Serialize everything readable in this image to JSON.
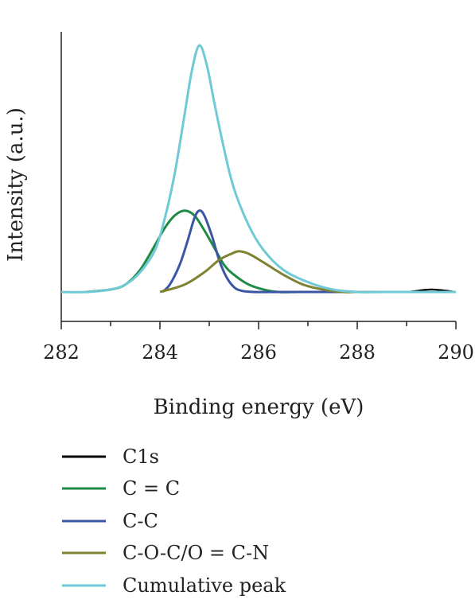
{
  "chart_data": {
    "type": "line",
    "title": "",
    "xlabel": "Binding energy (eV)",
    "ylabel": "Intensity (a.u.)",
    "xlim": [
      282,
      290
    ],
    "ylim": [
      0,
      1
    ],
    "x_ticks": [
      "282",
      "284",
      "286",
      "288",
      "290"
    ],
    "grid": false,
    "legend": {
      "placement": "bottom"
    },
    "series": [
      {
        "name": "C1s",
        "color": "#000000",
        "x": [
          282.0,
          282.5,
          283.0,
          283.3,
          283.6,
          283.9,
          284.1,
          284.3,
          284.5,
          284.65,
          284.8,
          284.95,
          285.1,
          285.3,
          285.5,
          285.8,
          286.1,
          286.5,
          287.0,
          287.5,
          288.0,
          288.5,
          289.0,
          289.5,
          290.0
        ],
        "y": [
          0.0,
          0.0,
          0.01,
          0.03,
          0.08,
          0.17,
          0.3,
          0.48,
          0.72,
          0.9,
          1.0,
          0.92,
          0.77,
          0.58,
          0.42,
          0.27,
          0.17,
          0.09,
          0.04,
          0.01,
          0.0,
          0.0,
          0.0,
          0.01,
          0.0
        ]
      },
      {
        "name": "C = C",
        "color": "#1f8a44",
        "x": [
          282.5,
          283.0,
          283.3,
          283.6,
          283.9,
          284.1,
          284.3,
          284.5,
          284.7,
          284.9,
          285.1,
          285.3,
          285.5,
          285.8,
          286.1,
          286.4,
          286.8,
          287.2
        ],
        "y": [
          0.0,
          0.01,
          0.03,
          0.09,
          0.19,
          0.26,
          0.31,
          0.33,
          0.31,
          0.25,
          0.18,
          0.11,
          0.07,
          0.03,
          0.01,
          0.0,
          0.0,
          0.0
        ]
      },
      {
        "name": "C-C",
        "color": "#3a56a5",
        "x": [
          284.05,
          284.2,
          284.4,
          284.55,
          284.7,
          284.8,
          284.9,
          285.05,
          285.2,
          285.35,
          285.5,
          285.65,
          285.9,
          286.5,
          290.0
        ],
        "y": [
          0.0,
          0.03,
          0.11,
          0.2,
          0.3,
          0.33,
          0.31,
          0.23,
          0.13,
          0.06,
          0.02,
          0.005,
          0.0,
          0.0,
          0.0
        ]
      },
      {
        "name": "C-O-C/O = C-N",
        "color": "#7f8230",
        "x": [
          284.0,
          284.5,
          284.9,
          285.2,
          285.45,
          285.6,
          285.8,
          286.1,
          286.5,
          286.9,
          287.3,
          287.7,
          288.0,
          288.5
        ],
        "y": [
          0.0,
          0.03,
          0.08,
          0.13,
          0.155,
          0.165,
          0.155,
          0.12,
          0.07,
          0.03,
          0.01,
          0.0,
          0.0,
          0.0
        ]
      },
      {
        "name": "Cumulative peak",
        "color": "#6fcad6",
        "x": [
          282.0,
          282.5,
          283.0,
          283.3,
          283.6,
          283.9,
          284.1,
          284.3,
          284.5,
          284.65,
          284.8,
          284.95,
          285.1,
          285.3,
          285.5,
          285.8,
          286.1,
          286.5,
          287.0,
          287.5,
          288.0,
          288.5,
          289.0,
          289.5,
          290.0
        ],
        "y": [
          0.0,
          0.0,
          0.01,
          0.03,
          0.08,
          0.17,
          0.3,
          0.48,
          0.72,
          0.9,
          1.0,
          0.92,
          0.77,
          0.58,
          0.42,
          0.27,
          0.17,
          0.09,
          0.04,
          0.01,
          0.0,
          0.0,
          0.0,
          0.0,
          0.0
        ]
      }
    ]
  }
}
